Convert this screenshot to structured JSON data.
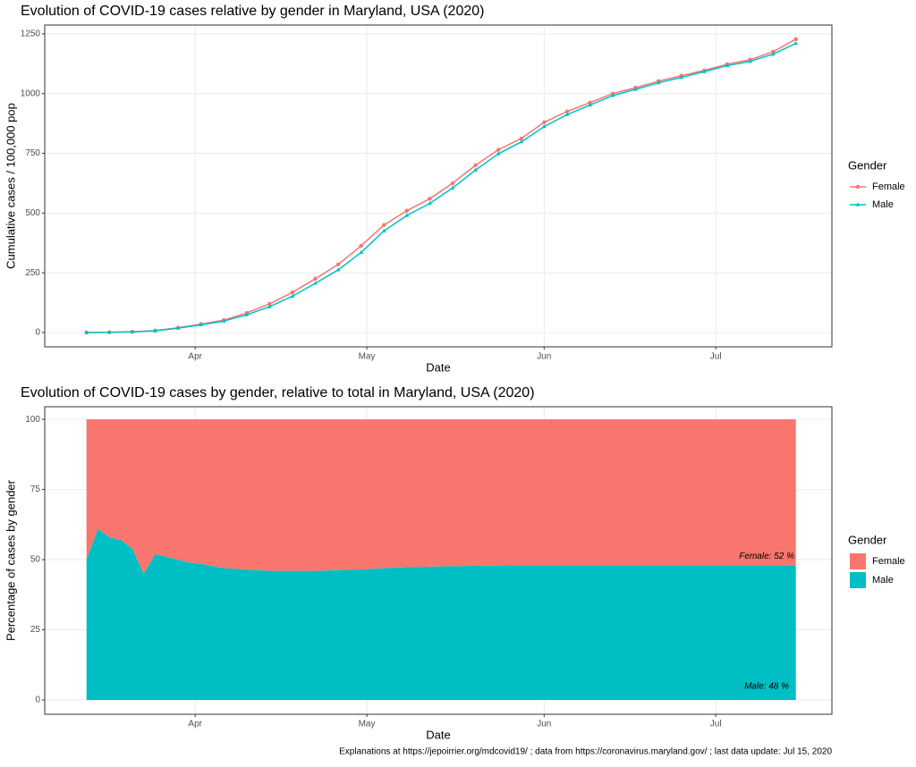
{
  "chart_data": [
    {
      "type": "line",
      "title": "Evolution of COVID-19 cases relative by gender in Maryland, USA (2020)",
      "x_label": "Date",
      "y_label": "Cumulative cases / 100,000 pop",
      "x": [
        73,
        77,
        81,
        85,
        89,
        93,
        97,
        101,
        105,
        109,
        113,
        117,
        121,
        125,
        129,
        133,
        137,
        141,
        145,
        149,
        153,
        157,
        161,
        165,
        169,
        173,
        177,
        181,
        185,
        189,
        193,
        197
      ],
      "xlim": [
        65.7,
        203.3
      ],
      "xticks": [
        {
          "value": 92,
          "label": "Apr"
        },
        {
          "value": 122,
          "label": "May"
        },
        {
          "value": 153,
          "label": "Jun"
        },
        {
          "value": 183,
          "label": "Jul"
        }
      ],
      "ylim": [
        -60,
        1287
      ],
      "yticks": [
        0,
        250,
        500,
        750,
        1000,
        1250
      ],
      "grid": true,
      "legend_title": "Gender",
      "series": [
        {
          "name": "Female",
          "color": "#F8766D",
          "marker": "circle",
          "values": [
            0,
            1,
            3,
            8,
            20,
            35,
            52,
            82,
            120,
            168,
            225,
            285,
            363,
            450,
            510,
            560,
            625,
            700,
            765,
            812,
            880,
            925,
            962,
            1000,
            1025,
            1052,
            1075,
            1097,
            1123,
            1142,
            1175,
            1228
          ]
        },
        {
          "name": "Male",
          "color": "#00BFC4",
          "marker": "triangle",
          "values": [
            0,
            1,
            3,
            7,
            18,
            32,
            48,
            74,
            108,
            152,
            206,
            262,
            335,
            425,
            490,
            540,
            605,
            680,
            748,
            798,
            862,
            912,
            952,
            992,
            1018,
            1045,
            1068,
            1092,
            1117,
            1135,
            1165,
            1210
          ]
        }
      ]
    },
    {
      "type": "area",
      "title": "Evolution of COVID-19 cases by gender, relative to total in Maryland, USA (2020)",
      "x_label": "Date",
      "y_label": "Percentage of cases by gender",
      "x": [
        73,
        75,
        77,
        79,
        81,
        83,
        85,
        87,
        89,
        91,
        93,
        97,
        101,
        105,
        109,
        113,
        117,
        121,
        125,
        129,
        133,
        137,
        141,
        145,
        149,
        153,
        157,
        161,
        165,
        169,
        173,
        177,
        181,
        185,
        189,
        193,
        197
      ],
      "xlim": [
        65.7,
        203.3
      ],
      "xticks": [
        {
          "value": 92,
          "label": "Apr"
        },
        {
          "value": 122,
          "label": "May"
        },
        {
          "value": 153,
          "label": "Jun"
        },
        {
          "value": 183,
          "label": "Jul"
        }
      ],
      "ylim": [
        -5.1,
        104.5
      ],
      "yticks": [
        0,
        25,
        50,
        75,
        100
      ],
      "grid": true,
      "legend_title": "Gender",
      "annotations": [
        "Female: 52 %",
        "Male: 48 %"
      ],
      "series": [
        {
          "name": "Male",
          "color": "#00BFC4",
          "values": [
            50,
            61,
            58,
            57,
            54,
            45,
            52,
            51,
            50,
            49,
            48.5,
            47,
            46.5,
            46,
            46,
            46,
            46.3,
            46.5,
            47,
            47.3,
            47.5,
            47.7,
            47.8,
            47.9,
            48,
            48,
            48,
            48,
            48,
            48,
            48,
            48,
            48,
            48,
            48,
            48,
            48
          ]
        },
        {
          "name": "Female",
          "color": "#F8766D",
          "values": [
            50,
            39,
            42,
            43,
            46,
            55,
            48,
            49,
            50,
            51,
            51.5,
            53,
            53.5,
            54,
            54,
            54,
            53.7,
            53.5,
            53,
            52.7,
            52.5,
            52.3,
            52.2,
            52.1,
            52,
            52,
            52,
            52,
            52,
            52,
            52,
            52,
            52,
            52,
            52,
            52,
            52
          ]
        }
      ]
    }
  ],
  "caption": "Explanations at https://jepoirrier.org/mdcovid19/ ; data from https://coronavirus.maryland.gov/ ; last data update: Jul 15, 2020"
}
